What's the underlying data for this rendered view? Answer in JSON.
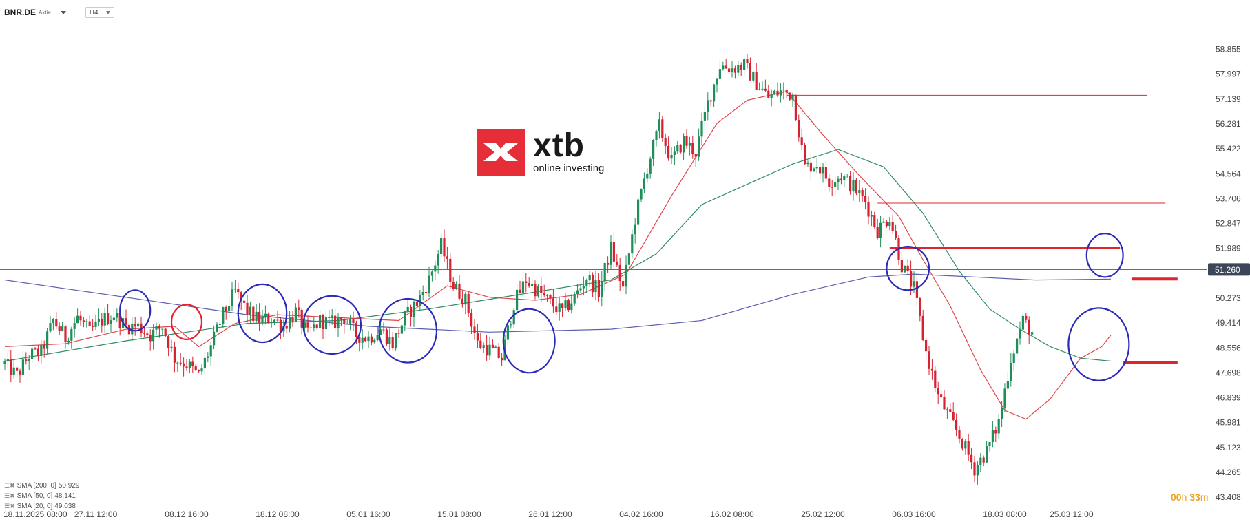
{
  "header": {
    "symbol": "BNR.DE",
    "instrument_type": "Aktie",
    "timeframe": "H4"
  },
  "logo": {
    "wordmark": "xtb",
    "tagline": "online investing",
    "brand_color": "#e52e38"
  },
  "timer": {
    "hours": "00",
    "h_unit": "h",
    "minutes": "33",
    "m_unit": "m"
  },
  "legend": [
    {
      "label": "SMA [200, 0]",
      "value": "50.929",
      "color": "#5b5fb0"
    },
    {
      "label": "SMA [50, 0]",
      "value": "48.141",
      "color": "#2e8b64"
    },
    {
      "label": "SMA [20, 0]",
      "value": "49.038",
      "color": "#e0454a"
    }
  ],
  "chart_data": {
    "type": "candlestick",
    "symbol": "BNR.DE",
    "timeframe": "H4",
    "current_price": 51.26,
    "current_price_label": "51.260",
    "ylim": [
      43.1,
      59.7
    ],
    "y_ticks": [
      "58.855",
      "57.997",
      "57.139",
      "56.281",
      "55.422",
      "54.564",
      "53.706",
      "52.847",
      "51.989",
      "51.260",
      "50.273",
      "49.414",
      "48.556",
      "47.698",
      "46.839",
      "45.981",
      "45.123",
      "44.265",
      "43.408"
    ],
    "x_ticks": [
      {
        "label": "18.11.2025  08:00",
        "index": 0
      },
      {
        "label": "27.11  12:00",
        "index": 30
      },
      {
        "label": "08.12  16:00",
        "index": 60
      },
      {
        "label": "18.12  08:00",
        "index": 90
      },
      {
        "label": "05.01  16:00",
        "index": 120
      },
      {
        "label": "15.01  08:00",
        "index": 150
      },
      {
        "label": "26.01  12:00",
        "index": 180
      },
      {
        "label": "04.02  16:00",
        "index": 210
      },
      {
        "label": "16.02  08:00",
        "index": 240
      },
      {
        "label": "25.02  12:00",
        "index": 270
      },
      {
        "label": "06.03  16:00",
        "index": 300
      },
      {
        "label": "18.03  08:00",
        "index": 330
      },
      {
        "label": "25.03  12:00",
        "index": 352
      }
    ],
    "candle_count": 340,
    "close_path": [
      [
        0,
        48.0
      ],
      [
        4,
        47.6
      ],
      [
        8,
        48.3
      ],
      [
        12,
        48.4
      ],
      [
        16,
        49.5
      ],
      [
        20,
        48.9
      ],
      [
        24,
        49.6
      ],
      [
        28,
        49.1
      ],
      [
        32,
        49.5
      ],
      [
        36,
        49.7
      ],
      [
        40,
        49.3
      ],
      [
        44,
        49.3
      ],
      [
        48,
        49.0
      ],
      [
        52,
        49.3
      ],
      [
        56,
        48.2
      ],
      [
        60,
        48.0
      ],
      [
        64,
        47.6
      ],
      [
        68,
        48.6
      ],
      [
        72,
        49.7
      ],
      [
        76,
        50.5
      ],
      [
        80,
        49.8
      ],
      [
        84,
        49.5
      ],
      [
        88,
        49.6
      ],
      [
        92,
        49.3
      ],
      [
        96,
        49.8
      ],
      [
        100,
        49.0
      ],
      [
        104,
        49.5
      ],
      [
        108,
        49.4
      ],
      [
        112,
        49.6
      ],
      [
        116,
        49.0
      ],
      [
        120,
        48.9
      ],
      [
        124,
        49.2
      ],
      [
        128,
        48.7
      ],
      [
        132,
        49.6
      ],
      [
        136,
        50.1
      ],
      [
        140,
        50.9
      ],
      [
        144,
        52.1
      ],
      [
        148,
        50.7
      ],
      [
        152,
        50.2
      ],
      [
        156,
        48.7
      ],
      [
        160,
        48.5
      ],
      [
        164,
        48.2
      ],
      [
        168,
        50.1
      ],
      [
        172,
        50.9
      ],
      [
        176,
        50.5
      ],
      [
        180,
        50.1
      ],
      [
        184,
        49.8
      ],
      [
        188,
        50.3
      ],
      [
        192,
        51.0
      ],
      [
        196,
        50.5
      ],
      [
        200,
        52.0
      ],
      [
        204,
        50.6
      ],
      [
        208,
        53.0
      ],
      [
        212,
        54.8
      ],
      [
        216,
        56.2
      ],
      [
        220,
        55.0
      ],
      [
        224,
        55.7
      ],
      [
        228,
        55.3
      ],
      [
        232,
        57.0
      ],
      [
        236,
        58.3
      ],
      [
        240,
        58.2
      ],
      [
        244,
        58.3
      ],
      [
        248,
        57.7
      ],
      [
        252,
        57.2
      ],
      [
        256,
        57.4
      ],
      [
        260,
        57.3
      ],
      [
        264,
        54.8
      ],
      [
        268,
        54.9
      ],
      [
        272,
        54.3
      ],
      [
        276,
        54.5
      ],
      [
        280,
        54.1
      ],
      [
        284,
        53.6
      ],
      [
        288,
        52.6
      ],
      [
        292,
        53.1
      ],
      [
        296,
        51.4
      ],
      [
        300,
        50.6
      ],
      [
        304,
        48.4
      ],
      [
        308,
        46.9
      ],
      [
        312,
        46.1
      ],
      [
        316,
        45.3
      ],
      [
        320,
        44.4
      ],
      [
        324,
        45.0
      ],
      [
        328,
        46.0
      ],
      [
        332,
        48.2
      ],
      [
        336,
        49.5
      ],
      [
        339,
        49.1
      ]
    ],
    "sma_20_path": [
      [
        0,
        48.6
      ],
      [
        20,
        48.7
      ],
      [
        40,
        49.2
      ],
      [
        56,
        49.3
      ],
      [
        64,
        48.6
      ],
      [
        76,
        49.4
      ],
      [
        90,
        49.7
      ],
      [
        110,
        49.6
      ],
      [
        130,
        49.5
      ],
      [
        146,
        50.7
      ],
      [
        160,
        50.3
      ],
      [
        175,
        50.2
      ],
      [
        190,
        50.4
      ],
      [
        205,
        51.1
      ],
      [
        220,
        53.8
      ],
      [
        235,
        56.3
      ],
      [
        245,
        57.1
      ],
      [
        258,
        57.4
      ],
      [
        270,
        55.9
      ],
      [
        282,
        54.5
      ],
      [
        295,
        53.1
      ],
      [
        303,
        51.6
      ],
      [
        312,
        50.0
      ],
      [
        322,
        47.8
      ],
      [
        330,
        46.4
      ],
      [
        337,
        46.1
      ],
      [
        345,
        46.8
      ],
      [
        355,
        48.2
      ],
      [
        362,
        48.6
      ],
      [
        365,
        49.0
      ]
    ],
    "sma_50_path": [
      [
        0,
        48.1
      ],
      [
        40,
        48.8
      ],
      [
        80,
        49.4
      ],
      [
        110,
        49.5
      ],
      [
        140,
        49.9
      ],
      [
        170,
        50.4
      ],
      [
        200,
        50.9
      ],
      [
        215,
        51.8
      ],
      [
        230,
        53.5
      ],
      [
        245,
        54.2
      ],
      [
        260,
        54.9
      ],
      [
        275,
        55.4
      ],
      [
        290,
        54.8
      ],
      [
        303,
        53.2
      ],
      [
        315,
        51.2
      ],
      [
        325,
        49.9
      ],
      [
        335,
        49.2
      ],
      [
        345,
        48.6
      ],
      [
        355,
        48.2
      ],
      [
        365,
        48.1
      ]
    ],
    "sma_200_path": [
      [
        0,
        50.9
      ],
      [
        40,
        50.3
      ],
      [
        80,
        49.7
      ],
      [
        120,
        49.3
      ],
      [
        160,
        49.1
      ],
      [
        200,
        49.2
      ],
      [
        230,
        49.5
      ],
      [
        260,
        50.4
      ],
      [
        285,
        51.0
      ],
      [
        300,
        51.1
      ],
      [
        320,
        51.0
      ],
      [
        340,
        50.9
      ],
      [
        365,
        50.93
      ]
    ],
    "resistance_lines": [
      {
        "y": 57.27,
        "x_from": 258,
        "x_to": 377,
        "weight": "thin"
      },
      {
        "y": 53.55,
        "x_from": 288,
        "x_to": 383,
        "weight": "thin"
      },
      {
        "y": 52.0,
        "x_from": 292,
        "x_to": 368,
        "weight": "thick"
      }
    ],
    "target_marks": [
      {
        "y": 50.93,
        "x_from": 372,
        "x_to": 387
      },
      {
        "y": 48.06,
        "x_from": 369,
        "x_to": 387
      }
    ],
    "annotations": [
      {
        "shape": "circle",
        "color": "blue",
        "cx": 43,
        "cy": 49.85,
        "rx": 5,
        "ry": 0.7
      },
      {
        "shape": "circle",
        "color": "red",
        "cx": 60,
        "cy": 49.45,
        "rx": 5,
        "ry": 0.6
      },
      {
        "shape": "circle",
        "color": "blue",
        "cx": 85,
        "cy": 49.75,
        "rx": 8,
        "ry": 1.0
      },
      {
        "shape": "circle",
        "color": "blue",
        "cx": 108,
        "cy": 49.35,
        "rx": 9.5,
        "ry": 1.0
      },
      {
        "shape": "circle",
        "color": "blue",
        "cx": 133,
        "cy": 49.15,
        "rx": 9.5,
        "ry": 1.1
      },
      {
        "shape": "circle",
        "color": "blue",
        "cx": 173,
        "cy": 48.8,
        "rx": 8.5,
        "ry": 1.1
      },
      {
        "shape": "circle",
        "color": "blue",
        "cx": 298,
        "cy": 51.3,
        "rx": 7,
        "ry": 0.75
      },
      {
        "shape": "circle",
        "color": "blue",
        "cx": 361,
        "cy": 48.68,
        "rx": 10,
        "ry": 1.25
      },
      {
        "shape": "circle",
        "color": "blue",
        "cx": 363,
        "cy": 51.75,
        "rx": 6,
        "ry": 0.75
      }
    ]
  }
}
